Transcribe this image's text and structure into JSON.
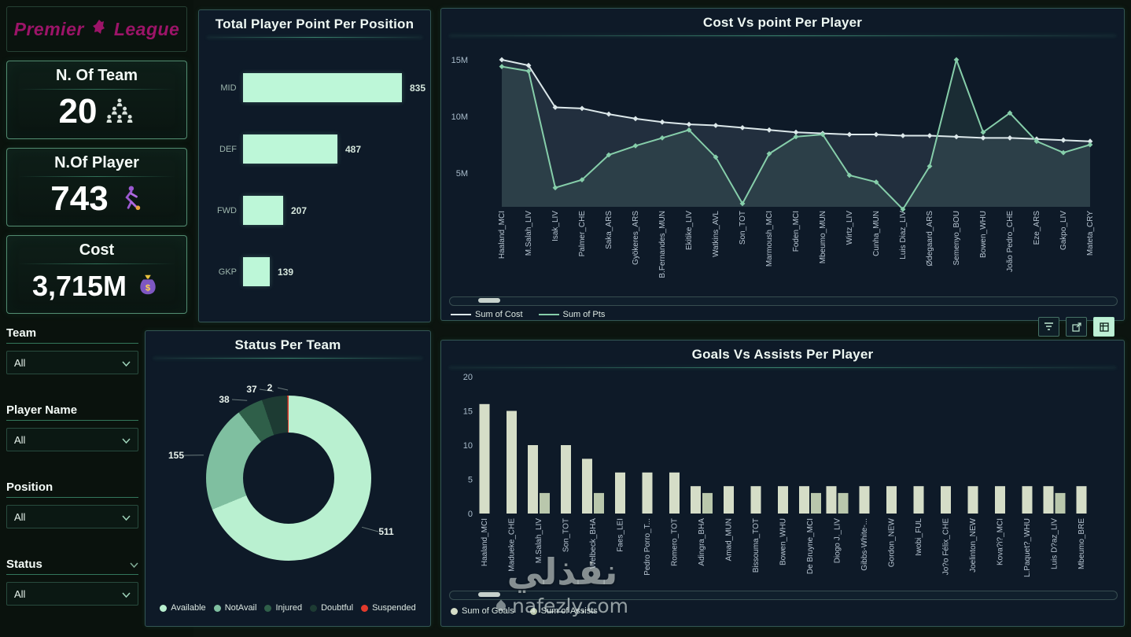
{
  "brand": {
    "left": "Premier",
    "right": "League"
  },
  "kpis": [
    {
      "title": "N. Of Team",
      "value": "20",
      "icon": "team-hierarchy-icon"
    },
    {
      "title": "N.Of Player",
      "value": "743",
      "icon": "footballer-icon"
    },
    {
      "title": "Cost",
      "value": "3,715M",
      "icon": "money-bag-icon"
    }
  ],
  "filters": [
    {
      "label": "Team",
      "value": "All"
    },
    {
      "label": "Player Name",
      "value": "All"
    },
    {
      "label": "Position",
      "value": "All"
    },
    {
      "label": "Status",
      "value": "All"
    }
  ],
  "watermark": {
    "arabic": "نفذلي",
    "site": "nafezly.com"
  },
  "colors": {
    "accent_mint": "#bdf7d8",
    "panel_border": "#56c89c",
    "suspended_red": "#e23a2c"
  },
  "chart_data": [
    {
      "type": "bar",
      "orientation": "horizontal",
      "title": "Total Player Point Per Position",
      "categories": [
        "MID",
        "DEF",
        "FWD",
        "GKP"
      ],
      "values": [
        835,
        487,
        207,
        139
      ],
      "bar_color": "#bdf7d8",
      "xlim": [
        0,
        900
      ],
      "grid": false
    },
    {
      "type": "line",
      "title": "Cost Vs point Per Player",
      "x": [
        "Haaland_MCI",
        "M.Salah_LIV",
        "Isak_LIV",
        "Palmer_CHE",
        "Saka_ARS",
        "Gyökeres_ARS",
        "B.Fernandes_MUN",
        "Ekitike_LIV",
        "Watkins_AVL",
        "Son_TOT",
        "Marmoush_MCI",
        "Foden_MCI",
        "Mbeumo_MUN",
        "Wirtz_LIV",
        "Cunha_MUN",
        "Luis Diaz_LIV",
        "Ødegaard_ARS",
        "Semenyo_BOU",
        "Bowen_WHU",
        "João Pedro_CHE",
        "Eze_ARS",
        "Gakpo_LIV",
        "Mateta_CRY"
      ],
      "series": [
        {
          "name": "Sum of Cost",
          "color": "#dce8ea",
          "values": [
            15.0,
            14.5,
            10.8,
            10.7,
            10.2,
            9.8,
            9.5,
            9.3,
            9.2,
            9.0,
            8.8,
            8.6,
            8.5,
            8.4,
            8.4,
            8.3,
            8.3,
            8.2,
            8.1,
            8.1,
            8.0,
            7.9,
            7.8
          ]
        },
        {
          "name": "Sum of Pts",
          "color": "#86ceaa",
          "values": [
            14.4,
            14.0,
            3.7,
            4.4,
            6.6,
            7.4,
            8.1,
            8.8,
            6.4,
            2.3,
            6.7,
            8.2,
            8.4,
            4.8,
            4.2,
            1.8,
            5.6,
            15.0,
            8.6,
            10.3,
            7.8,
            6.8,
            7.5
          ]
        }
      ],
      "yticks": [
        5,
        10,
        15
      ],
      "ytick_labels": [
        "5M",
        "10M",
        "15M"
      ],
      "ylim": [
        0,
        16
      ],
      "grid": false,
      "legend_position": "bottom-left"
    },
    {
      "type": "pie",
      "donut": true,
      "title": "Status Per Team",
      "labels": [
        "Available",
        "NotAvail",
        "Injured",
        "Doubtful",
        "Suspended"
      ],
      "values": [
        511,
        155,
        38,
        37,
        2
      ],
      "colors": [
        "#b9f0d0",
        "#7fbfa0",
        "#2f5f49",
        "#1d3b33",
        "#e23a2c"
      ],
      "legend_position": "bottom"
    },
    {
      "type": "bar",
      "title": "Goals Vs Assists Per Player",
      "categories": [
        "Haaland_MCI",
        "Madueke_CHE",
        "M.Salah_LIV",
        "Son_TOT",
        "Welbeck_BHA",
        "Faes_LEI",
        "Pedro Porro_T...",
        "Romero_TOT",
        "Adingra_BHA",
        "Amad_MUN",
        "Bissouma_TOT",
        "Bowen_WHU",
        "De Bruyne_MCI",
        "Diogo J._LIV",
        "Gibbs-White-...",
        "Gordon_NEW",
        "Iwobi_FUL",
        "Jo?o Félix_CHE",
        "Joelinton_NEW",
        "Kova?i?_MCI",
        "L.Paquet?_WHU",
        "Luis D?az_LIV",
        "Mbeumo_BRE"
      ],
      "series": [
        {
          "name": "Sum of Goals",
          "color": "#d5ddc7",
          "values": [
            16,
            15,
            10,
            10,
            8,
            6,
            6,
            6,
            4,
            4,
            4,
            4,
            4,
            4,
            4,
            4,
            4,
            4,
            4,
            4,
            4,
            4,
            4
          ]
        },
        {
          "name": "Sum of Assists",
          "color": "#b9c7ac",
          "values": [
            0,
            0,
            3,
            0,
            3,
            0,
            0,
            0,
            3,
            0,
            0,
            0,
            3,
            3,
            0,
            0,
            0,
            0,
            0,
            0,
            0,
            3,
            0
          ]
        }
      ],
      "yticks": [
        0,
        5,
        10,
        15,
        20
      ],
      "ylim": [
        0,
        20
      ],
      "grid": false,
      "legend_position": "bottom-left"
    }
  ]
}
